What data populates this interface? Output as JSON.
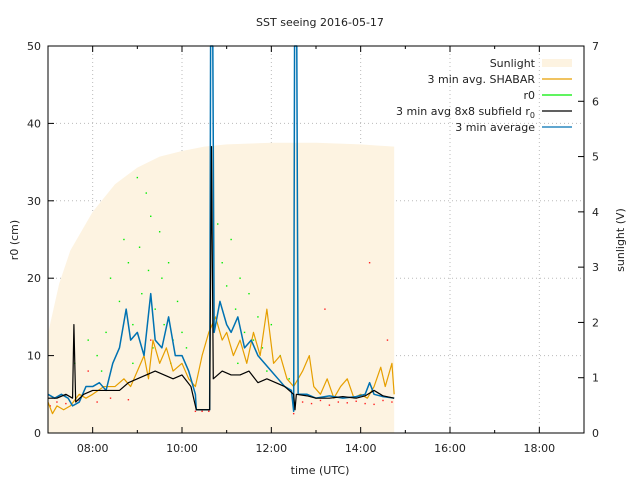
{
  "chart_data": {
    "type": "line",
    "title": "SST seeing 2016-05-17",
    "xlabel": "time (UTC)",
    "ylabel": "r0 (cm)",
    "y2label": "sunlight (V)",
    "xlim": [
      7,
      19
    ],
    "ylim": [
      0,
      50
    ],
    "y2lim": [
      0,
      7
    ],
    "xticks": [
      {
        "v": 8,
        "label": "08:00"
      },
      {
        "v": 10,
        "label": "10:00"
      },
      {
        "v": 12,
        "label": "12:00"
      },
      {
        "v": 14,
        "label": "14:00"
      },
      {
        "v": 16,
        "label": "16:00"
      },
      {
        "v": 18,
        "label": "18:00"
      }
    ],
    "yticks": [
      0,
      10,
      20,
      30,
      40,
      50
    ],
    "y2ticks": [
      0,
      1,
      2,
      3,
      4,
      5,
      6,
      7
    ],
    "grid": true,
    "legend_position": "top-right",
    "legend": [
      {
        "name": "Sunlight",
        "color": "#fdf3e1",
        "kind": "fill"
      },
      {
        "name": "3 min avg. SHABAR",
        "color": "#e69f00",
        "kind": "line"
      },
      {
        "name": "r0",
        "color": "#00ee00",
        "kind": "line"
      },
      {
        "name": "3 min avg 8x8 subfield r",
        "sub": "0",
        "color": "#000000",
        "kind": "line"
      },
      {
        "name": "3 min average",
        "color": "#0072b2",
        "kind": "line"
      }
    ],
    "sunlight_V": [
      [
        7,
        1.8
      ],
      [
        7.25,
        2.7
      ],
      [
        7.5,
        3.3
      ],
      [
        8,
        4.0
      ],
      [
        8.5,
        4.5
      ],
      [
        9,
        4.8
      ],
      [
        9.5,
        5.0
      ],
      [
        10,
        5.1
      ],
      [
        10.5,
        5.18
      ],
      [
        11,
        5.22
      ],
      [
        12,
        5.25
      ],
      [
        13,
        5.25
      ],
      [
        14,
        5.22
      ],
      [
        14.75,
        5.18
      ]
    ],
    "shabar": [
      [
        7,
        4
      ],
      [
        7.1,
        2.5
      ],
      [
        7.2,
        3.5
      ],
      [
        7.35,
        3
      ],
      [
        7.5,
        3.5
      ],
      [
        7.7,
        5
      ],
      [
        7.85,
        4.5
      ],
      [
        8,
        5
      ],
      [
        8.25,
        6
      ],
      [
        8.5,
        6
      ],
      [
        8.7,
        7
      ],
      [
        8.85,
        6
      ],
      [
        9,
        8
      ],
      [
        9.15,
        10
      ],
      [
        9.25,
        7
      ],
      [
        9.35,
        12
      ],
      [
        9.5,
        9
      ],
      [
        9.65,
        11
      ],
      [
        9.8,
        8
      ],
      [
        10,
        9
      ],
      [
        10.15,
        7
      ],
      [
        10.3,
        6
      ],
      [
        10.45,
        10
      ],
      [
        10.6,
        13
      ],
      [
        10.75,
        15
      ],
      [
        10.9,
        12
      ],
      [
        11,
        13
      ],
      [
        11.15,
        10
      ],
      [
        11.3,
        12
      ],
      [
        11.45,
        9
      ],
      [
        11.6,
        13
      ],
      [
        11.75,
        10
      ],
      [
        11.9,
        16
      ],
      [
        12.05,
        9
      ],
      [
        12.2,
        10
      ],
      [
        12.35,
        7
      ],
      [
        12.5,
        6
      ],
      [
        12.7,
        8
      ],
      [
        12.85,
        10
      ],
      [
        12.95,
        6
      ],
      [
        13.1,
        5
      ],
      [
        13.25,
        7
      ],
      [
        13.4,
        4.5
      ],
      [
        13.55,
        6
      ],
      [
        13.7,
        7
      ],
      [
        13.85,
        4.5
      ],
      [
        14,
        5
      ],
      [
        14.15,
        4.5
      ],
      [
        14.3,
        6
      ],
      [
        14.45,
        8.5
      ],
      [
        14.55,
        6
      ],
      [
        14.7,
        9
      ],
      [
        14.75,
        5
      ]
    ],
    "subfield_r0": [
      [
        7,
        4.5
      ],
      [
        7.2,
        4.5
      ],
      [
        7.4,
        5
      ],
      [
        7.55,
        4.5
      ],
      [
        7.58,
        14
      ],
      [
        7.62,
        4
      ],
      [
        7.8,
        5
      ],
      [
        8,
        5.5
      ],
      [
        8.3,
        5.5
      ],
      [
        8.6,
        5.5
      ],
      [
        8.8,
        6.5
      ],
      [
        9,
        7
      ],
      [
        9.2,
        7.5
      ],
      [
        9.4,
        8
      ],
      [
        9.6,
        7.5
      ],
      [
        9.8,
        7
      ],
      [
        10,
        7.5
      ],
      [
        10.2,
        6
      ],
      [
        10.32,
        3
      ],
      [
        10.62,
        3
      ],
      [
        10.66,
        37
      ],
      [
        10.7,
        7
      ],
      [
        10.9,
        8
      ],
      [
        11.1,
        7.5
      ],
      [
        11.3,
        7.5
      ],
      [
        11.5,
        8
      ],
      [
        11.7,
        6.5
      ],
      [
        11.9,
        7
      ],
      [
        12.1,
        6.5
      ],
      [
        12.3,
        6
      ],
      [
        12.5,
        5
      ],
      [
        12.53,
        3
      ],
      [
        12.56,
        5
      ],
      [
        12.8,
        4.8
      ],
      [
        13,
        4.5
      ],
      [
        13.3,
        4.5
      ],
      [
        13.6,
        4.7
      ],
      [
        13.9,
        4.5
      ],
      [
        14.1,
        4.8
      ],
      [
        14.3,
        5.5
      ],
      [
        14.5,
        4.8
      ],
      [
        14.75,
        4.5
      ]
    ],
    "avg_3min": [
      [
        7,
        5
      ],
      [
        7.15,
        4.5
      ],
      [
        7.3,
        5
      ],
      [
        7.45,
        4.5
      ],
      [
        7.55,
        3.5
      ],
      [
        7.7,
        4
      ],
      [
        7.85,
        6
      ],
      [
        8,
        6
      ],
      [
        8.15,
        6.5
      ],
      [
        8.3,
        5.5
      ],
      [
        8.45,
        9
      ],
      [
        8.6,
        11
      ],
      [
        8.75,
        16
      ],
      [
        8.85,
        12
      ],
      [
        9,
        13
      ],
      [
        9.15,
        10
      ],
      [
        9.3,
        18
      ],
      [
        9.4,
        12
      ],
      [
        9.55,
        11
      ],
      [
        9.7,
        15
      ],
      [
        9.85,
        10
      ],
      [
        10,
        10
      ],
      [
        10.15,
        8
      ],
      [
        10.3,
        5
      ],
      [
        10.32,
        3
      ],
      [
        10.62,
        3
      ],
      [
        10.64,
        50
      ],
      [
        10.69,
        50
      ],
      [
        10.72,
        13
      ],
      [
        10.85,
        17
      ],
      [
        11,
        14
      ],
      [
        11.1,
        13
      ],
      [
        11.25,
        15
      ],
      [
        11.4,
        11
      ],
      [
        11.55,
        12
      ],
      [
        11.7,
        10
      ],
      [
        11.85,
        9
      ],
      [
        12,
        8
      ],
      [
        12.15,
        7
      ],
      [
        12.3,
        6
      ],
      [
        12.45,
        5.5
      ],
      [
        12.5,
        2.8
      ],
      [
        12.52,
        50
      ],
      [
        12.57,
        50
      ],
      [
        12.6,
        5
      ],
      [
        12.8,
        5
      ],
      [
        13,
        4.5
      ],
      [
        13.3,
        4.8
      ],
      [
        13.6,
        4.5
      ],
      [
        13.9,
        4.7
      ],
      [
        14.1,
        5
      ],
      [
        14.2,
        6.5
      ],
      [
        14.3,
        5
      ],
      [
        14.5,
        4.7
      ],
      [
        14.75,
        4.5
      ]
    ],
    "r0_samples": [
      [
        7.6,
        9
      ],
      [
        7.9,
        12
      ],
      [
        8.1,
        10
      ],
      [
        8.3,
        13
      ],
      [
        8.4,
        20
      ],
      [
        8.6,
        17
      ],
      [
        8.7,
        25
      ],
      [
        8.8,
        22
      ],
      [
        8.9,
        14
      ],
      [
        9.0,
        33
      ],
      [
        9.05,
        24
      ],
      [
        9.1,
        18
      ],
      [
        9.2,
        31
      ],
      [
        9.25,
        21
      ],
      [
        9.3,
        28
      ],
      [
        9.4,
        16
      ],
      [
        9.5,
        26
      ],
      [
        9.55,
        20
      ],
      [
        9.6,
        14
      ],
      [
        9.7,
        22
      ],
      [
        9.8,
        12
      ],
      [
        9.9,
        17
      ],
      [
        10.0,
        13
      ],
      [
        10.1,
        11
      ],
      [
        10.8,
        27
      ],
      [
        10.9,
        22
      ],
      [
        11.0,
        19
      ],
      [
        11.1,
        25
      ],
      [
        11.2,
        16
      ],
      [
        11.3,
        20
      ],
      [
        11.4,
        13
      ],
      [
        11.5,
        18
      ],
      [
        11.6,
        12
      ],
      [
        11.7,
        15
      ],
      [
        11.8,
        11
      ],
      [
        12.0,
        14
      ],
      [
        12.2,
        10
      ],
      [
        12.4,
        7
      ],
      [
        8.2,
        8
      ],
      [
        8.9,
        9
      ],
      [
        9.35,
        11
      ],
      [
        9.75,
        9
      ],
      [
        11.25,
        9
      ],
      [
        11.9,
        8
      ]
    ],
    "raw_samples": [
      [
        7.05,
        3.5
      ],
      [
        7.2,
        4
      ],
      [
        7.4,
        3.8
      ],
      [
        7.7,
        4.2
      ],
      [
        7.9,
        8
      ],
      [
        8.1,
        4
      ],
      [
        8.4,
        4.5
      ],
      [
        8.8,
        4.3
      ],
      [
        9.3,
        12
      ],
      [
        10.3,
        2.8
      ],
      [
        10.45,
        2.8
      ],
      [
        10.6,
        2.8
      ],
      [
        12.5,
        2.5
      ],
      [
        12.7,
        4
      ],
      [
        12.9,
        3.8
      ],
      [
        13.1,
        4.2
      ],
      [
        13.3,
        3.6
      ],
      [
        13.5,
        4
      ],
      [
        13.7,
        3.9
      ],
      [
        13.9,
        4.1
      ],
      [
        14.1,
        3.8
      ],
      [
        14.3,
        3.7
      ],
      [
        14.5,
        4.2
      ],
      [
        14.7,
        4
      ],
      [
        14.6,
        12
      ],
      [
        13.2,
        16
      ],
      [
        6.5,
        0
      ],
      [
        14.2,
        22
      ]
    ]
  }
}
